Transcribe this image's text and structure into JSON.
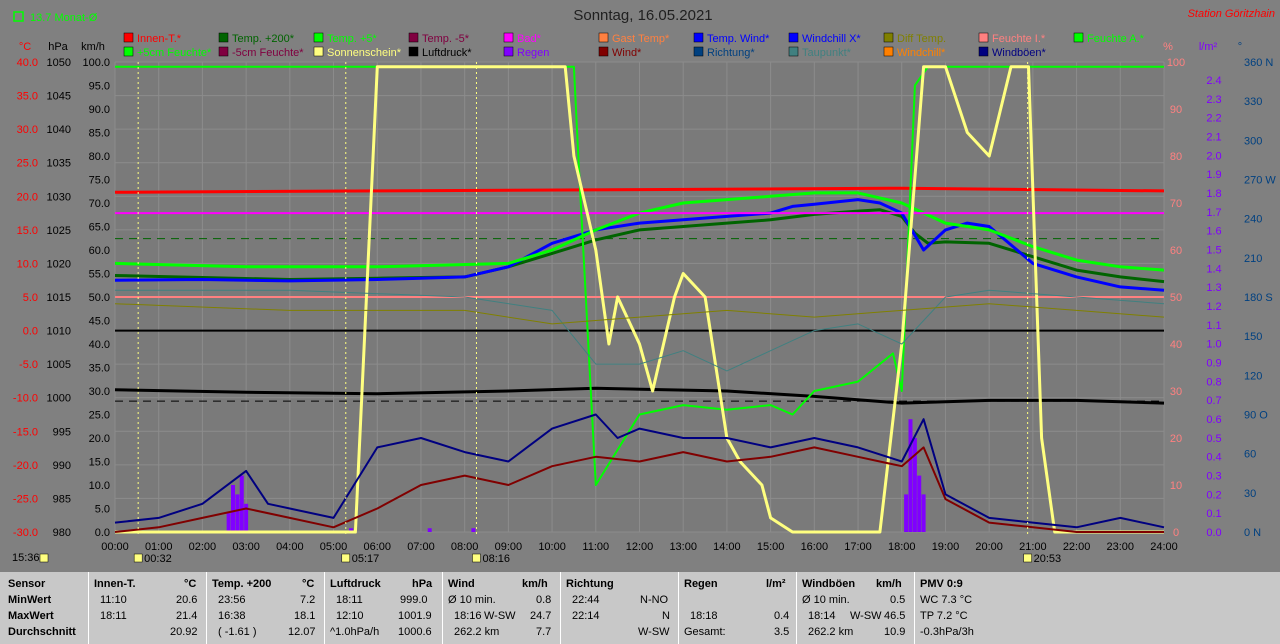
{
  "title": "Sonntag, 16.05.2021",
  "station": "Station Göritzhain",
  "month_avg_label": "13.7 Monat-Ø",
  "colors": {
    "innen": "#ff0000",
    "temp200": "#006400",
    "temp5": "#00ff00",
    "tempm5": "#800040",
    "bad": "#ff00ff",
    "gast": "#ff8040",
    "tempwind": "#0000ff",
    "windchillx": "#0000ff",
    "diff": "#808000",
    "feuchtei": "#ff8080",
    "feuchtea": "#00ff00",
    "feuchte5": "#00ff00",
    "feuchtem5": "#800040",
    "sonne": "#ffff80",
    "luftdruck": "#000000",
    "regen": "#8000ff",
    "wind": "#800000",
    "richtung": "#004080",
    "taupunkt": "#408080",
    "windchill": "#ff8000",
    "windboeen": "#000080"
  },
  "legend_row1": [
    {
      "label": "Innen-T.*",
      "key": "innen"
    },
    {
      "label": "Temp. +200*",
      "key": "temp200"
    },
    {
      "label": "Temp. +5*",
      "key": "temp5"
    },
    {
      "label": "Temp. -5*",
      "key": "tempm5"
    },
    {
      "label": "Bad*",
      "key": "bad"
    },
    {
      "label": "Gast Temp*",
      "key": "gast"
    },
    {
      "label": "Temp. Wind*",
      "key": "tempwind"
    },
    {
      "label": "Windchill X*",
      "key": "windchillx"
    },
    {
      "label": "Diff Temp.",
      "key": "diff"
    },
    {
      "label": "Feuchte I.*",
      "key": "feuchtei"
    },
    {
      "label": "Feuchte A.*",
      "key": "feuchtea"
    }
  ],
  "legend_row2": [
    {
      "label": "+5cm Feuchte*",
      "key": "feuchte5"
    },
    {
      "label": "-5cm Feuchte*",
      "key": "feuchtem5"
    },
    {
      "label": "Sonnenschein*",
      "key": "sonne"
    },
    {
      "label": "Luftdruck*",
      "key": "luftdruck"
    },
    {
      "label": "Regen",
      "key": "regen"
    },
    {
      "label": "Wind*",
      "key": "wind"
    },
    {
      "label": "Richtung*",
      "key": "richtung"
    },
    {
      "label": "Taupunkt*",
      "key": "taupunkt"
    },
    {
      "label": "Windchill*",
      "key": "windchill"
    },
    {
      "label": "Windböen*",
      "key": "windboeen"
    }
  ],
  "axis_units": {
    "temp": "°C",
    "hpa": "hPa",
    "kmh": "km/h",
    "pct": "%",
    "lm2": "l/m²",
    "deg": "°"
  },
  "chart_data": {
    "type": "line",
    "x_ticks": [
      "00:00",
      "01:00",
      "02:00",
      "03:00",
      "04:00",
      "05:00",
      "06:00",
      "07:00",
      "08:00",
      "09:00",
      "10:00",
      "11:00",
      "12:00",
      "13:00",
      "14:00",
      "15:00",
      "16:00",
      "17:00",
      "18:00",
      "19:00",
      "20:00",
      "21:00",
      "22:00",
      "23:00",
      "24:00"
    ],
    "x_range_hours": [
      0,
      24
    ],
    "temp_ticks": [
      "40.0",
      "35.0",
      "30.0",
      "25.0",
      "20.0",
      "15.0",
      "10.0",
      "5.0",
      "0.0",
      "-5.0",
      "-10.0",
      "-15.0",
      "-20.0",
      "-25.0",
      "-30.0"
    ],
    "hpa_ticks": [
      "1050",
      "1045",
      "1040",
      "1035",
      "1030",
      "1025",
      "1020",
      "1015",
      "1010",
      "1005",
      "1000",
      "995",
      "990",
      "985",
      "980"
    ],
    "kmh_ticks": [
      "100.0",
      "95.0",
      "90.0",
      "85.0",
      "80.0",
      "75.0",
      "70.0",
      "65.0",
      "60.0",
      "55.0",
      "50.0",
      "45.0",
      "40.0",
      "35.0",
      "30.0",
      "25.0",
      "20.0",
      "15.0",
      "10.0",
      "5.0",
      "0.0"
    ],
    "pct_ticks": [
      "100",
      "90",
      "80",
      "70",
      "60",
      "50",
      "40",
      "30",
      "20",
      "10",
      "0"
    ],
    "lm2_ticks": [
      "2.4",
      "2.3",
      "2.2",
      "2.1",
      "2.0",
      "1.9",
      "1.8",
      "1.7",
      "1.6",
      "1.5",
      "1.4",
      "1.3",
      "1.2",
      "1.1",
      "1.0",
      "0.9",
      "0.8",
      "0.7",
      "0.6",
      "0.5",
      "0.4",
      "0.3",
      "0.2",
      "0.1",
      "0.0"
    ],
    "deg_ticks": [
      "360 N",
      "330",
      "300",
      "270 W",
      "240",
      "210",
      "180 S",
      "150",
      "120",
      "90 O",
      "60",
      "30",
      "0 N"
    ],
    "sun_events": [
      {
        "hour": 0.53,
        "label": "00:32"
      },
      {
        "hour": 5.28,
        "label": "05:17"
      },
      {
        "hour": 8.27,
        "label": "08:16"
      },
      {
        "hour": 20.88,
        "label": "20:53"
      }
    ],
    "current_time_label": "15:36",
    "series": [
      {
        "name": "Innen-T.*",
        "key": "innen",
        "axis": "temp",
        "width": 3,
        "x": [
          0,
          6,
          12,
          18,
          24
        ],
        "y": [
          20.6,
          20.8,
          21.0,
          21.2,
          20.8
        ]
      },
      {
        "name": "Luftdruck*",
        "key": "luftdruck",
        "axis": "hpa",
        "width": 3,
        "x": [
          0,
          3,
          6,
          9,
          11,
          14,
          16,
          18,
          20,
          22,
          24
        ],
        "y": [
          1001.2,
          1000.8,
          1000.6,
          1001.0,
          1001.4,
          1001.0,
          1000.2,
          999.2,
          999.6,
          999.6,
          999.2
        ]
      },
      {
        "name": "Temp. +200*",
        "key": "temp200",
        "axis": "temp",
        "width": 3,
        "x": [
          0,
          2,
          4,
          6,
          8,
          9,
          10,
          11,
          12,
          13,
          14,
          15,
          16,
          17,
          17.5,
          18,
          18.3,
          18.6,
          19,
          20,
          21,
          22,
          23,
          24
        ],
        "y": [
          8.2,
          7.9,
          7.6,
          7.8,
          8.0,
          9.5,
          11.5,
          13.5,
          15.0,
          15.5,
          16.0,
          16.5,
          17.3,
          17.8,
          18.0,
          17.0,
          14.5,
          13.0,
          13.2,
          13.0,
          11.0,
          9.0,
          8.0,
          7.3
        ]
      },
      {
        "name": "Temp. Wind*",
        "key": "tempwind",
        "axis": "temp",
        "width": 3,
        "x": [
          0,
          2,
          4,
          6,
          7,
          8,
          9,
          10,
          11,
          12,
          13,
          14,
          15,
          15.5,
          16,
          17,
          17.5,
          18,
          18.5,
          19,
          19.5,
          20,
          21,
          22,
          23,
          24
        ],
        "y": [
          7.5,
          7.6,
          7.4,
          7.6,
          7.8,
          8.0,
          9.5,
          13.0,
          15.0,
          16.0,
          16.5,
          17.0,
          17.5,
          18.5,
          18.8,
          19.5,
          19.0,
          17.5,
          12.0,
          15.0,
          16.0,
          15.5,
          10.0,
          8.0,
          6.5,
          6.0
        ]
      },
      {
        "name": "Temp. +5*",
        "key": "temp5",
        "axis": "temp",
        "width": 3,
        "x": [
          0,
          3,
          6,
          9,
          10,
          11,
          12,
          13,
          14,
          15,
          16,
          17,
          18,
          19,
          20,
          21,
          22,
          23,
          24
        ],
        "y": [
          10.0,
          9.5,
          9.5,
          10.0,
          12.0,
          15.0,
          17.5,
          19.0,
          19.5,
          20.0,
          20.5,
          20.5,
          19.0,
          16.0,
          15.0,
          12.5,
          10.5,
          9.5,
          9.0
        ]
      },
      {
        "name": "Feuchte I.*",
        "key": "feuchtei",
        "axis": "pct",
        "width": 2,
        "x": [
          0,
          24
        ],
        "y": [
          50,
          50
        ]
      },
      {
        "name": "Bad*",
        "key": "bad",
        "axis": "temp",
        "width": 2,
        "x": [
          0,
          24
        ],
        "y": [
          17.5,
          17.5
        ]
      },
      {
        "name": "Feuchte A.*",
        "key": "feuchtea",
        "axis": "pct",
        "width": 2,
        "x": [
          0,
          10.5,
          10.6,
          11,
          12,
          13,
          14,
          15,
          15.5,
          16,
          17,
          17.8,
          18,
          18.3,
          18.6,
          19,
          24
        ],
        "y": [
          99,
          99,
          80,
          10,
          25,
          27,
          26,
          27,
          25,
          30,
          32,
          38,
          30,
          95,
          99,
          99,
          99
        ]
      },
      {
        "name": "Sonnenschein*",
        "key": "sonne",
        "axis": "pct",
        "width": 3,
        "x": [
          0,
          5.5,
          6,
          10.3,
          10.5,
          11,
          11.3,
          11.5,
          12,
          12.3,
          12.8,
          13,
          13.5,
          14,
          14.3,
          14.8,
          15,
          15.5,
          16,
          17,
          17.5,
          18,
          18.5,
          19,
          19.5,
          20,
          20.5,
          20.9,
          21.2,
          21.5,
          24
        ],
        "y": [
          0,
          0,
          99,
          99,
          80,
          60,
          40,
          50,
          40,
          30,
          50,
          55,
          50,
          20,
          15,
          10,
          3,
          0,
          0,
          0,
          0,
          40,
          99,
          99,
          85,
          80,
          99,
          99,
          20,
          0,
          0
        ]
      },
      {
        "name": "Wind*",
        "key": "wind",
        "axis": "kmh",
        "width": 2,
        "x": [
          0,
          1,
          2,
          3,
          4,
          5,
          6,
          7,
          8,
          9,
          10,
          11,
          12,
          13,
          14,
          15,
          16,
          17,
          18,
          18.5,
          19,
          20,
          21,
          22,
          23,
          24
        ],
        "y": [
          0,
          1,
          3,
          5,
          3,
          1,
          5,
          10,
          12,
          10,
          14,
          16,
          15,
          17,
          15,
          16,
          18,
          16,
          14,
          18,
          7,
          2,
          1,
          0,
          0,
          0
        ]
      },
      {
        "name": "Windböen*",
        "key": "windboeen",
        "axis": "kmh",
        "width": 2,
        "x": [
          0,
          1,
          2,
          3,
          3.5,
          4,
          5,
          6,
          7,
          8,
          9,
          10,
          11,
          11.5,
          12,
          13,
          14,
          15,
          16,
          17,
          18,
          18.5,
          19,
          20,
          21,
          22,
          23,
          24
        ],
        "y": [
          2,
          3,
          6,
          13,
          6,
          5,
          3,
          18,
          20,
          17,
          15,
          22,
          25,
          20,
          22,
          20,
          20,
          18,
          20,
          18,
          15,
          24,
          8,
          3,
          2,
          1,
          3,
          1
        ]
      },
      {
        "name": "Taupunkt*",
        "key": "taupunkt",
        "axis": "temp",
        "width": 1,
        "x": [
          0,
          4,
          8,
          10,
          11,
          12,
          13,
          14,
          15,
          16,
          17,
          18,
          19,
          20,
          22,
          24
        ],
        "y": [
          6,
          6,
          5,
          3,
          -5,
          -5,
          -3,
          -6,
          -3,
          0,
          1,
          -2,
          5,
          6,
          5,
          4
        ]
      },
      {
        "name": "Diff Temp.",
        "key": "diff",
        "axis": "temp",
        "width": 1,
        "x": [
          0,
          4,
          8,
          10,
          12,
          14,
          16,
          18,
          20,
          22,
          24
        ],
        "y": [
          4,
          3,
          3,
          1,
          2,
          3,
          2,
          3,
          4,
          3,
          2
        ]
      }
    ],
    "regen_bars": [
      {
        "hour": 2.6,
        "value": 0.1
      },
      {
        "hour": 2.7,
        "value": 0.25
      },
      {
        "hour": 2.8,
        "value": 0.2
      },
      {
        "hour": 2.9,
        "value": 0.3
      },
      {
        "hour": 3.0,
        "value": 0.15
      },
      {
        "hour": 5.4,
        "value": 0.02
      },
      {
        "hour": 7.2,
        "value": 0.02
      },
      {
        "hour": 8.2,
        "value": 0.02
      },
      {
        "hour": 18.1,
        "value": 0.2
      },
      {
        "hour": 18.2,
        "value": 0.6
      },
      {
        "hour": 18.3,
        "value": 0.5
      },
      {
        "hour": 18.4,
        "value": 0.3
      },
      {
        "hour": 18.5,
        "value": 0.2
      }
    ]
  },
  "footer": {
    "sensor": {
      "h": "Sensor",
      "r1": "MinWert",
      "r2": "MaxWert",
      "r3": "Durchschnitt"
    },
    "innen": {
      "h": "Innen-T.",
      "u": "°C",
      "t1": "11:10",
      "v1": "20.6",
      "t2": "18:11",
      "v2": "21.4",
      "v3": "20.92"
    },
    "temp": {
      "h": "Temp. +200",
      "u": "°C",
      "t1": "23:56",
      "v1": "7.2",
      "t2": "16:38",
      "v2": "18.1",
      "t3": "( -1.61 )",
      "v3": "12.07"
    },
    "druck": {
      "h": "Luftdruck",
      "u": "hPa",
      "t1": "18:11",
      "v1": "999.0",
      "t2": "12:10",
      "v2": "1001.9",
      "t3": "^1.0hPa/h",
      "v3": "1000.6"
    },
    "wind": {
      "h": "Wind",
      "u": "km/h",
      "t1": "Ø 10 min.",
      "v1": "0.8",
      "t2": "18:16",
      "d2": "W-SW",
      "v2": "24.7",
      "t3": "262.2 km",
      "v3": "7.7"
    },
    "richtung": {
      "h": "Richtung",
      "t1": "22:44",
      "v1": "N-NO",
      "t2": "22:14",
      "v2": "N",
      "v3": "W-SW"
    },
    "regen": {
      "h": "Regen",
      "u": "l/m²",
      "t2": "18:18",
      "v2": "0.4",
      "t3": "Gesamt:",
      "v3": "3.5"
    },
    "boeen": {
      "h": "Windböen",
      "u": "km/h",
      "t1": "Ø 10 min.",
      "v1": "0.5",
      "t2": "18:14",
      "d2": "W-SW",
      "v2": "46.5",
      "t3": "262.2 km",
      "v3": "10.9"
    },
    "pmv": {
      "h": "PMV 0:9",
      "r1": "WC 7.3 °C",
      "r2": "TP 7.2 °C",
      "r3": "-0.3hPa/3h"
    }
  }
}
